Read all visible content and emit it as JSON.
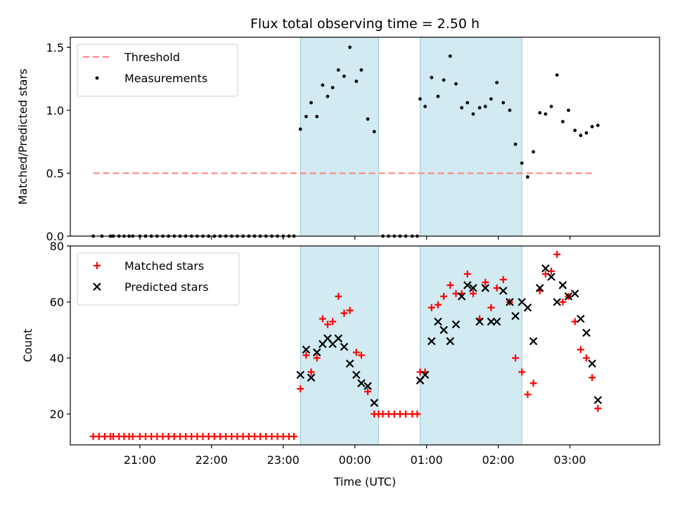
{
  "chart_data": {
    "title": "Flux total observing time = 2.50 h",
    "xlabel": "Time (UTC)",
    "x_ticks": [
      "21:00",
      "22:00",
      "23:00",
      "00:00",
      "01:00",
      "02:00",
      "03:00"
    ],
    "x_tick_hours": [
      21,
      22,
      23,
      24,
      25,
      26,
      27
    ],
    "xlim_hours": [
      20.03,
      28.25
    ],
    "shaded_intervals_hours": [
      [
        23.24,
        24.33
      ],
      [
        24.91,
        26.33
      ]
    ],
    "shade_color": "#add8e6",
    "panels": [
      {
        "type": "scatter",
        "ylabel": "Matched/Predicted stars",
        "ylim": [
          0,
          1.58
        ],
        "y_ticks": [
          "0.0",
          "0.5",
          "1.0",
          "1.5"
        ],
        "y_tick_values": [
          0,
          0.5,
          1.0,
          1.5
        ],
        "legend_position": "upper-left",
        "series": [
          {
            "name": "Threshold",
            "kind": "dashed-line",
            "color": "#ff7f7f",
            "points": [
              [
                20.35,
                0.5
              ],
              [
                27.35,
                0.5
              ]
            ]
          },
          {
            "name": "Measurements",
            "kind": "dot",
            "color": "#000000",
            "points": [
              [
                20.35,
                0
              ],
              [
                20.47,
                0
              ],
              [
                20.59,
                0
              ],
              [
                20.63,
                0
              ],
              [
                20.71,
                0
              ],
              [
                20.78,
                0
              ],
              [
                20.85,
                0
              ],
              [
                20.9,
                0
              ],
              [
                21.0,
                0
              ],
              [
                21.08,
                0
              ],
              [
                21.16,
                0
              ],
              [
                21.24,
                0
              ],
              [
                21.32,
                0
              ],
              [
                21.4,
                0
              ],
              [
                21.48,
                0
              ],
              [
                21.56,
                0
              ],
              [
                21.64,
                0
              ],
              [
                21.72,
                0
              ],
              [
                21.8,
                0
              ],
              [
                21.88,
                0
              ],
              [
                21.96,
                0
              ],
              [
                22.04,
                0
              ],
              [
                22.12,
                0
              ],
              [
                22.2,
                0
              ],
              [
                22.28,
                0
              ],
              [
                22.36,
                0
              ],
              [
                22.44,
                0
              ],
              [
                22.52,
                0
              ],
              [
                22.6,
                0
              ],
              [
                22.68,
                0
              ],
              [
                22.76,
                0
              ],
              [
                22.84,
                0
              ],
              [
                22.92,
                0
              ],
              [
                23.0,
                0
              ],
              [
                23.08,
                0
              ],
              [
                23.15,
                0
              ],
              [
                23.24,
                0.85
              ],
              [
                23.32,
                0.95
              ],
              [
                23.39,
                1.06
              ],
              [
                23.47,
                0.95
              ],
              [
                23.55,
                1.2
              ],
              [
                23.62,
                1.11
              ],
              [
                23.69,
                1.18
              ],
              [
                23.77,
                1.32
              ],
              [
                23.85,
                1.27
              ],
              [
                23.93,
                1.5
              ],
              [
                24.02,
                1.23
              ],
              [
                24.09,
                1.32
              ],
              [
                24.18,
                0.93
              ],
              [
                24.27,
                0.83
              ],
              [
                24.39,
                0
              ],
              [
                24.47,
                0
              ],
              [
                24.55,
                0
              ],
              [
                24.63,
                0
              ],
              [
                24.71,
                0
              ],
              [
                24.8,
                0
              ],
              [
                24.87,
                0
              ],
              [
                24.91,
                1.09
              ],
              [
                24.98,
                1.03
              ],
              [
                25.07,
                1.26
              ],
              [
                25.16,
                1.11
              ],
              [
                25.24,
                1.24
              ],
              [
                25.33,
                1.43
              ],
              [
                25.41,
                1.21
              ],
              [
                25.49,
                1.02
              ],
              [
                25.57,
                1.06
              ],
              [
                25.65,
                0.97
              ],
              [
                25.74,
                1.02
              ],
              [
                25.82,
                1.03
              ],
              [
                25.9,
                1.09
              ],
              [
                25.98,
                1.22
              ],
              [
                26.07,
                1.06
              ],
              [
                26.16,
                1.0
              ],
              [
                26.24,
                0.73
              ],
              [
                26.33,
                0.58
              ],
              [
                26.41,
                0.47
              ],
              [
                26.49,
                0.67
              ],
              [
                26.58,
                0.98
              ],
              [
                26.66,
                0.97
              ],
              [
                26.74,
                1.03
              ],
              [
                26.82,
                1.28
              ],
              [
                26.9,
                0.91
              ],
              [
                26.98,
                1.0
              ],
              [
                27.07,
                0.84
              ],
              [
                27.15,
                0.8
              ],
              [
                27.23,
                0.82
              ],
              [
                27.31,
                0.87
              ],
              [
                27.39,
                0.88
              ]
            ]
          }
        ]
      },
      {
        "type": "scatter",
        "ylabel": "Count",
        "ylim": [
          9,
          80
        ],
        "y_ticks": [
          "20",
          "40",
          "60",
          "80"
        ],
        "y_tick_values": [
          20,
          40,
          60,
          80
        ],
        "legend_position": "upper-left",
        "series": [
          {
            "name": "Matched stars",
            "kind": "plus",
            "color": "#ff0000",
            "points": [
              [
                20.35,
                12
              ],
              [
                20.43,
                12
              ],
              [
                20.51,
                12
              ],
              [
                20.59,
                12
              ],
              [
                20.63,
                12
              ],
              [
                20.71,
                12
              ],
              [
                20.78,
                12
              ],
              [
                20.85,
                12
              ],
              [
                20.9,
                12
              ],
              [
                21.0,
                12
              ],
              [
                21.08,
                12
              ],
              [
                21.16,
                12
              ],
              [
                21.24,
                12
              ],
              [
                21.32,
                12
              ],
              [
                21.4,
                12
              ],
              [
                21.48,
                12
              ],
              [
                21.56,
                12
              ],
              [
                21.64,
                12
              ],
              [
                21.72,
                12
              ],
              [
                21.8,
                12
              ],
              [
                21.88,
                12
              ],
              [
                21.96,
                12
              ],
              [
                22.04,
                12
              ],
              [
                22.12,
                12
              ],
              [
                22.2,
                12
              ],
              [
                22.28,
                12
              ],
              [
                22.36,
                12
              ],
              [
                22.44,
                12
              ],
              [
                22.52,
                12
              ],
              [
                22.6,
                12
              ],
              [
                22.68,
                12
              ],
              [
                22.76,
                12
              ],
              [
                22.84,
                12
              ],
              [
                22.92,
                12
              ],
              [
                23.0,
                12
              ],
              [
                23.08,
                12
              ],
              [
                23.15,
                12
              ],
              [
                23.24,
                29
              ],
              [
                23.32,
                41
              ],
              [
                23.39,
                35
              ],
              [
                23.47,
                40
              ],
              [
                23.55,
                54
              ],
              [
                23.62,
                52
              ],
              [
                23.69,
                53
              ],
              [
                23.77,
                62
              ],
              [
                23.85,
                56
              ],
              [
                23.93,
                57
              ],
              [
                24.02,
                42
              ],
              [
                24.09,
                41
              ],
              [
                24.18,
                28
              ],
              [
                24.27,
                20
              ],
              [
                24.33,
                20
              ],
              [
                24.39,
                20
              ],
              [
                24.47,
                20
              ],
              [
                24.55,
                20
              ],
              [
                24.63,
                20
              ],
              [
                24.71,
                20
              ],
              [
                24.8,
                20
              ],
              [
                24.87,
                20
              ],
              [
                24.91,
                35
              ],
              [
                24.98,
                35
              ],
              [
                25.07,
                58
              ],
              [
                25.16,
                59
              ],
              [
                25.24,
                62
              ],
              [
                25.33,
                66
              ],
              [
                25.41,
                63
              ],
              [
                25.49,
                63
              ],
              [
                25.57,
                70
              ],
              [
                25.65,
                63
              ],
              [
                25.74,
                54
              ],
              [
                25.82,
                67
              ],
              [
                25.9,
                58
              ],
              [
                25.98,
                65
              ],
              [
                26.07,
                68
              ],
              [
                26.16,
                60
              ],
              [
                26.24,
                40
              ],
              [
                26.33,
                35
              ],
              [
                26.41,
                27
              ],
              [
                26.49,
                31
              ],
              [
                26.58,
                64
              ],
              [
                26.66,
                70
              ],
              [
                26.74,
                71
              ],
              [
                26.82,
                77
              ],
              [
                26.9,
                60
              ],
              [
                26.98,
                62
              ],
              [
                27.07,
                53
              ],
              [
                27.15,
                43
              ],
              [
                27.23,
                40
              ],
              [
                27.31,
                33
              ],
              [
                27.39,
                22
              ]
            ]
          },
          {
            "name": "Predicted stars",
            "kind": "x",
            "color": "#000000",
            "points": [
              [
                23.24,
                34
              ],
              [
                23.32,
                43
              ],
              [
                23.39,
                33
              ],
              [
                23.47,
                42
              ],
              [
                23.55,
                45
              ],
              [
                23.62,
                47
              ],
              [
                23.69,
                45
              ],
              [
                23.77,
                47
              ],
              [
                23.85,
                44
              ],
              [
                23.93,
                38
              ],
              [
                24.02,
                34
              ],
              [
                24.09,
                31
              ],
              [
                24.18,
                30
              ],
              [
                24.27,
                24
              ],
              [
                24.91,
                32
              ],
              [
                24.98,
                34
              ],
              [
                25.07,
                46
              ],
              [
                25.16,
                53
              ],
              [
                25.24,
                50
              ],
              [
                25.33,
                46
              ],
              [
                25.41,
                52
              ],
              [
                25.49,
                62
              ],
              [
                25.57,
                66
              ],
              [
                25.65,
                65
              ],
              [
                25.74,
                53
              ],
              [
                25.82,
                65
              ],
              [
                25.9,
                53
              ],
              [
                25.98,
                53
              ],
              [
                26.07,
                64
              ],
              [
                26.16,
                60
              ],
              [
                26.24,
                55
              ],
              [
                26.33,
                60
              ],
              [
                26.41,
                58
              ],
              [
                26.49,
                46
              ],
              [
                26.58,
                65
              ],
              [
                26.66,
                72
              ],
              [
                26.74,
                69
              ],
              [
                26.82,
                60
              ],
              [
                26.9,
                66
              ],
              [
                26.98,
                62
              ],
              [
                27.07,
                63
              ],
              [
                27.15,
                54
              ],
              [
                27.23,
                49
              ],
              [
                27.31,
                38
              ],
              [
                27.39,
                25
              ]
            ]
          }
        ]
      }
    ]
  }
}
